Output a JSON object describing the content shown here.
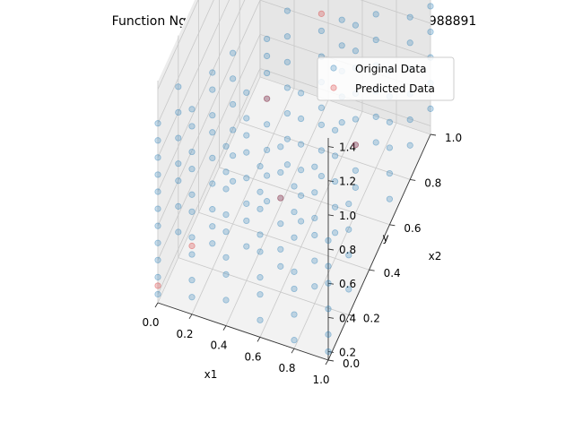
{
  "chart_data": {
    "type": "scatter",
    "title": "Function Nguyen_F9_LHS, MSE: 0.0006691525200988891",
    "xlabel": "x1",
    "ylabel": "x2",
    "zlabel": "y",
    "xlim": [
      0.0,
      1.0
    ],
    "ylim": [
      0.0,
      1.0
    ],
    "zlim": [
      0.15,
      1.45
    ],
    "xticks": [
      "0.0",
      "0.2",
      "0.4",
      "0.6",
      "0.8",
      "1.0"
    ],
    "yticks": [
      "0.0",
      "0.2",
      "0.4",
      "0.6",
      "0.8",
      "1.0"
    ],
    "zticks": [
      "0.2",
      "0.4",
      "0.6",
      "0.8",
      "1.0",
      "1.2",
      "1.4"
    ],
    "grid": true,
    "legend_position": "top-right",
    "series": [
      {
        "name": "Original Data",
        "color": "#1f77b4",
        "alpha": 0.25,
        "columns": [
          {
            "x": 0.0,
            "y": 0.0,
            "z": [
              0.2,
              0.3,
              0.4,
              0.5,
              0.6,
              0.7,
              0.8,
              0.9,
              1.0,
              1.1,
              1.2
            ]
          },
          {
            "x": 0.2,
            "y": 0.0,
            "z": [
              0.25,
              0.35,
              0.5,
              0.6,
              0.75,
              0.85,
              1.0,
              1.1,
              1.25,
              1.35
            ]
          },
          {
            "x": 0.4,
            "y": 0.0,
            "z": [
              0.3,
              0.45,
              0.55,
              0.7,
              0.8,
              0.95,
              1.05,
              1.2
            ]
          },
          {
            "x": 0.6,
            "y": 0.0,
            "z": [
              0.25,
              0.4,
              0.5,
              0.65,
              0.75,
              0.9,
              1.0,
              1.15
            ]
          },
          {
            "x": 0.8,
            "y": 0.0,
            "z": [
              0.2,
              0.35,
              0.5,
              0.6,
              0.8,
              0.95,
              1.1
            ]
          },
          {
            "x": 1.0,
            "y": 0.0,
            "z": [
              0.2,
              0.3,
              0.45,
              0.6,
              0.7,
              0.85
            ]
          },
          {
            "x": 0.0,
            "y": 0.2,
            "z": [
              0.3,
              0.45,
              0.6,
              0.7,
              0.85,
              1.0,
              1.15
            ]
          },
          {
            "x": 0.2,
            "y": 0.2,
            "z": [
              0.3,
              0.4,
              0.5,
              0.65,
              0.8,
              0.95,
              1.05,
              1.2,
              1.3
            ]
          },
          {
            "x": 0.4,
            "y": 0.2,
            "z": [
              0.35,
              0.5,
              0.6,
              0.75,
              0.9,
              1.0,
              1.1,
              1.25
            ]
          },
          {
            "x": 0.6,
            "y": 0.2,
            "z": [
              0.3,
              0.4,
              0.55,
              0.7,
              0.85,
              1.0
            ]
          },
          {
            "x": 0.8,
            "y": 0.2,
            "z": [
              0.25,
              0.4,
              0.55,
              0.65,
              0.8,
              0.95
            ]
          },
          {
            "x": 1.0,
            "y": 0.2,
            "z": [
              0.3,
              0.5,
              0.65,
              0.8
            ]
          },
          {
            "x": 0.2,
            "y": 0.4,
            "z": [
              0.4,
              0.55,
              0.7,
              0.85,
              1.0,
              1.15
            ]
          },
          {
            "x": 0.4,
            "y": 0.4,
            "z": [
              0.35,
              0.5,
              0.65,
              0.8,
              0.95,
              1.1,
              1.2,
              1.3
            ]
          },
          {
            "x": 0.6,
            "y": 0.4,
            "z": [
              0.3,
              0.45,
              0.6,
              0.75,
              0.9,
              1.05
            ]
          },
          {
            "x": 0.8,
            "y": 0.4,
            "z": [
              0.3,
              0.45,
              0.6,
              0.75,
              0.9
            ]
          },
          {
            "x": 0.4,
            "y": 0.6,
            "z": [
              0.3,
              0.45,
              0.6,
              0.75,
              0.9,
              1.05,
              1.2
            ]
          },
          {
            "x": 0.6,
            "y": 0.6,
            "z": [
              0.3,
              0.45,
              0.6,
              0.7,
              0.85,
              1.0,
              1.15
            ]
          },
          {
            "x": 0.8,
            "y": 0.6,
            "z": [
              0.3,
              0.4,
              0.55,
              0.7,
              0.85,
              1.0,
              1.1,
              1.25
            ]
          },
          {
            "x": 1.0,
            "y": 0.6,
            "z": [
              0.3,
              0.45,
              0.6,
              0.75,
              0.9,
              1.05
            ]
          },
          {
            "x": 0.6,
            "y": 0.8,
            "z": [
              0.35,
              0.5,
              0.65,
              0.8,
              0.95,
              1.1,
              1.25
            ]
          },
          {
            "x": 0.8,
            "y": 0.8,
            "z": [
              0.3,
              0.45,
              0.6,
              0.75,
              0.9,
              1.05,
              1.2,
              1.3
            ]
          },
          {
            "x": 1.0,
            "y": 0.8,
            "z": [
              0.35,
              0.5,
              0.65,
              0.8,
              0.95,
              1.1
            ]
          },
          {
            "x": 1.0,
            "y": 1.0,
            "z": [
              0.3,
              0.45,
              0.6,
              0.75,
              0.9,
              1.0,
              1.15
            ]
          }
        ]
      },
      {
        "name": "Predicted Data",
        "color": "#d62728",
        "alpha": 0.25,
        "points": [
          {
            "x": 0.0,
            "y": 0.0,
            "z": 0.25
          },
          {
            "x": 0.2,
            "y": 0.0,
            "z": 0.55
          },
          {
            "x": 0.6,
            "y": 0.2,
            "z": 0.7
          },
          {
            "x": 0.4,
            "y": 0.4,
            "z": 0.95
          },
          {
            "x": 0.8,
            "y": 0.6,
            "z": 0.55
          },
          {
            "x": 0.6,
            "y": 0.6,
            "z": 1.25
          },
          {
            "x": 1.0,
            "y": 0.8,
            "z": 1.35
          },
          {
            "x": 1.0,
            "y": 1.0,
            "z": 1.05
          }
        ]
      }
    ]
  }
}
